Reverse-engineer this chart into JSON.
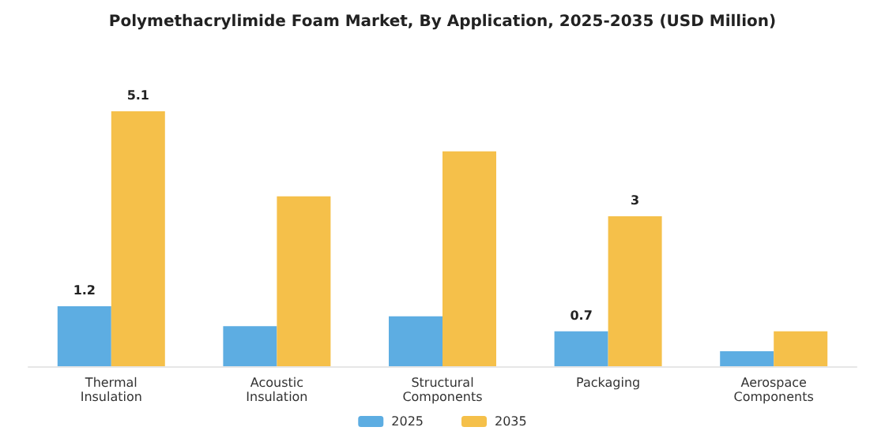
{
  "chart_data": {
    "type": "bar",
    "title": "Polymethacrylimide Foam Market, By Application, 2025-2035 (USD Million)",
    "categories": [
      "Thermal\nInsulation",
      "Acoustic\nInsulation",
      "Structural\nComponents",
      "Packaging",
      "Aerospace\nComponents"
    ],
    "series": [
      {
        "name": "2025",
        "color": "#5dade2",
        "values": [
          1.2,
          0.8,
          1.0,
          0.7,
          0.3
        ],
        "value_labels": [
          "1.2",
          null,
          null,
          "0.7",
          null
        ]
      },
      {
        "name": "2035",
        "color": "#f5c04a",
        "values": [
          5.1,
          3.4,
          4.3,
          3,
          0.7
        ],
        "value_labels": [
          "5.1",
          null,
          null,
          "3",
          null
        ]
      }
    ],
    "legend": "bottom"
  }
}
